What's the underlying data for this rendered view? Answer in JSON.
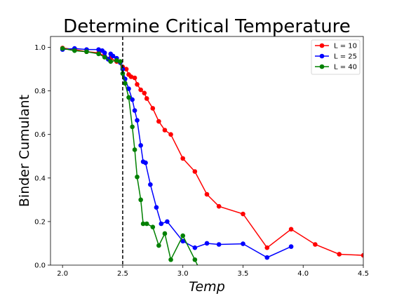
{
  "chart_data": {
    "type": "line",
    "title": "Determine Critical Temperature",
    "xlabel": "Temp",
    "ylabel": "Binder Cumulant",
    "xlim": [
      1.9,
      4.5
    ],
    "ylim": [
      0.0,
      1.05
    ],
    "xticks": [
      "2.0",
      "2.5",
      "3.0",
      "3.5",
      "4.0",
      "4.5"
    ],
    "xtick_values": [
      2.0,
      2.5,
      3.0,
      3.5,
      4.0,
      4.5
    ],
    "yticks": [
      "0.0",
      "0.2",
      "0.4",
      "0.6",
      "0.8",
      "1.0"
    ],
    "ytick_values": [
      0.0,
      0.2,
      0.4,
      0.6,
      0.8,
      1.0
    ],
    "grid": false,
    "legend_position": "top-right",
    "vline": {
      "x": 2.5,
      "style": "dashed",
      "color": "#000000"
    },
    "series": [
      {
        "name": "L = 10",
        "color": "#ff0000",
        "x": [
          2.0,
          2.1,
          2.2,
          2.3,
          2.35,
          2.4,
          2.45,
          2.5,
          2.53,
          2.55,
          2.57,
          2.6,
          2.62,
          2.65,
          2.68,
          2.7,
          2.75,
          2.8,
          2.85,
          2.9,
          3.0,
          3.1,
          3.2,
          3.3,
          3.5,
          3.7,
          3.9,
          4.1,
          4.3,
          4.5
        ],
        "y": [
          0.997,
          0.99,
          0.98,
          0.975,
          0.96,
          0.95,
          0.935,
          0.91,
          0.9,
          0.875,
          0.865,
          0.86,
          0.83,
          0.805,
          0.79,
          0.765,
          0.72,
          0.66,
          0.62,
          0.6,
          0.49,
          0.43,
          0.325,
          0.27,
          0.235,
          0.08,
          0.165,
          0.095,
          0.05,
          0.045
        ]
      },
      {
        "name": "L = 25",
        "color": "#0000ff",
        "x": [
          2.0,
          2.1,
          2.2,
          2.3,
          2.33,
          2.35,
          2.38,
          2.4,
          2.42,
          2.45,
          2.48,
          2.5,
          2.52,
          2.55,
          2.58,
          2.6,
          2.62,
          2.65,
          2.67,
          2.69,
          2.73,
          2.78,
          2.82,
          2.87,
          3.0,
          3.1,
          3.2,
          3.3,
          3.5,
          3.7,
          3.9
        ],
        "y": [
          0.99,
          0.995,
          0.99,
          0.99,
          0.985,
          0.975,
          0.945,
          0.97,
          0.96,
          0.95,
          0.93,
          0.9,
          0.855,
          0.81,
          0.76,
          0.71,
          0.665,
          0.55,
          0.475,
          0.47,
          0.37,
          0.265,
          0.19,
          0.2,
          0.11,
          0.08,
          0.1,
          0.095,
          0.098,
          0.035,
          0.085
        ]
      },
      {
        "name": "L = 40",
        "color": "#008000",
        "x": [
          2.0,
          2.1,
          2.2,
          2.3,
          2.35,
          2.4,
          2.45,
          2.48,
          2.5,
          2.52,
          2.55,
          2.58,
          2.6,
          2.62,
          2.65,
          2.67,
          2.7,
          2.75,
          2.8,
          2.85,
          2.9,
          3.0,
          3.1,
          3.2
        ],
        "y": [
          0.995,
          0.985,
          0.98,
          0.97,
          0.955,
          0.935,
          0.94,
          0.935,
          0.88,
          0.835,
          0.77,
          0.635,
          0.53,
          0.405,
          0.3,
          0.19,
          0.19,
          0.175,
          0.09,
          0.145,
          0.025,
          0.135,
          0.025,
          -0.09
        ]
      }
    ]
  }
}
